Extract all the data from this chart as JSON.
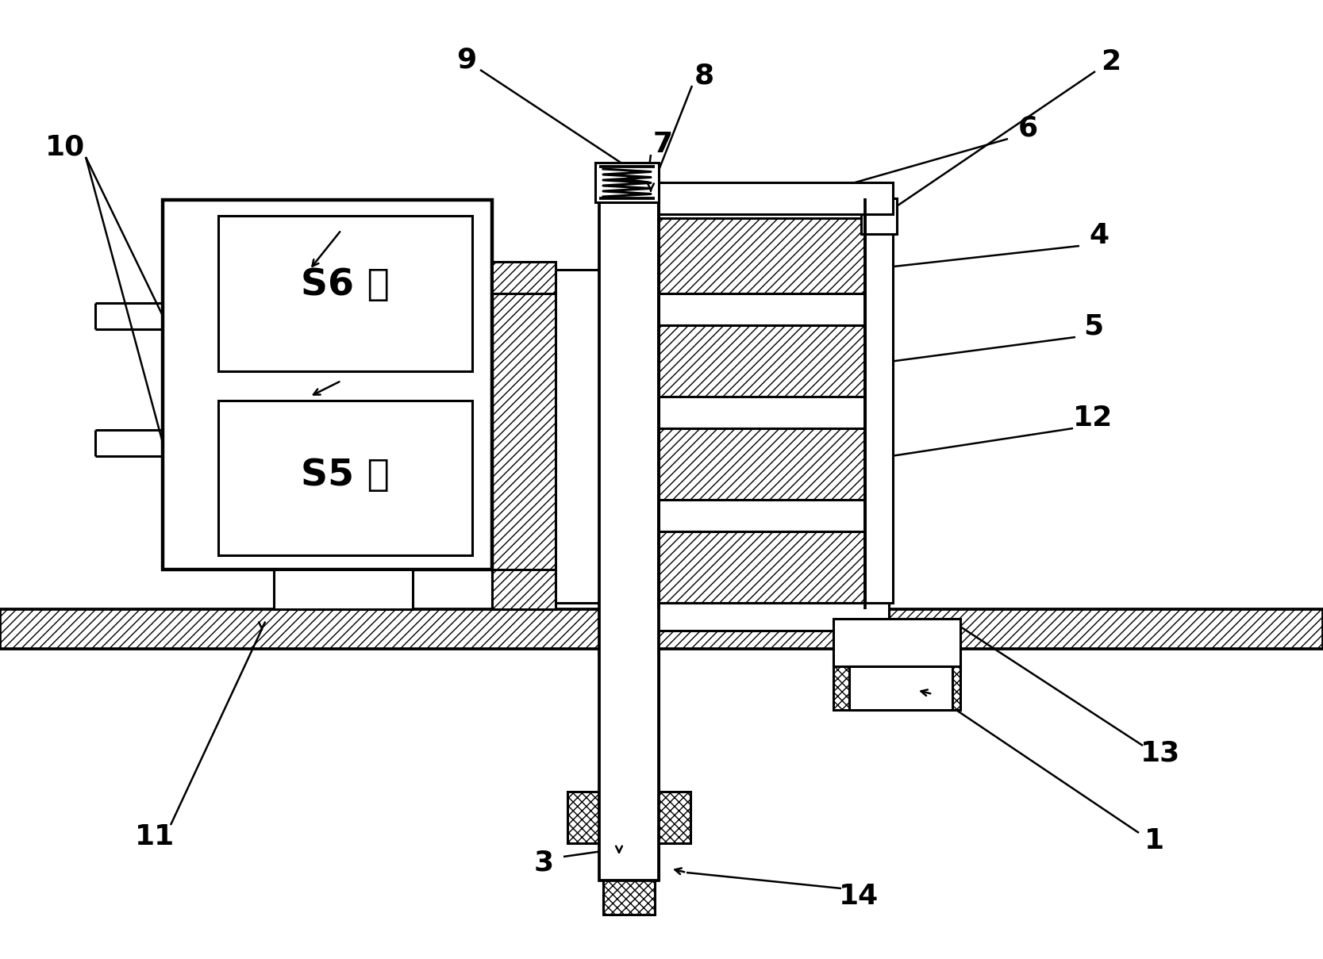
{
  "bg": "#ffffff",
  "lc": "#000000",
  "lw": 2.2,
  "s6_text": "S6 开",
  "s5_text": "S5 关",
  "label_fs": 26,
  "switch_fs": 34
}
